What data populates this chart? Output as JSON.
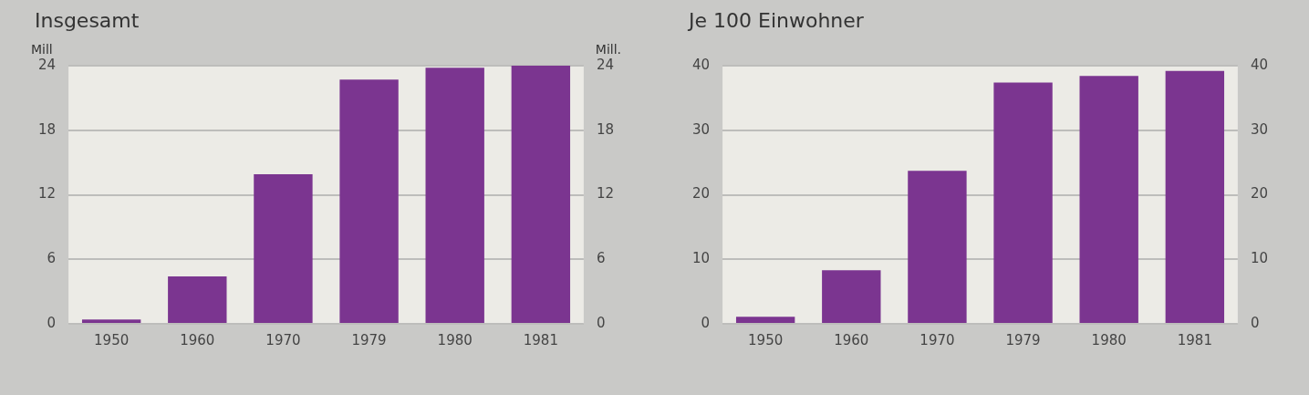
{
  "chart_data": [
    {
      "type": "bar",
      "title": "Insgesamt",
      "ylabel": "Mill",
      "y2label": "Mill.",
      "categories": [
        "1950",
        "1960",
        "1970",
        "1979",
        "1980",
        "1981"
      ],
      "series": [
        {
          "color": "#7b3590",
          "values": [
            0.4,
            4.4,
            13.9,
            22.7,
            23.8,
            24.0
          ]
        }
      ],
      "ylim": [
        0,
        24
      ],
      "yticks": [
        0,
        6,
        12,
        18,
        24
      ],
      "y2lim": [
        0,
        24
      ],
      "y2ticks": [
        0,
        6,
        12,
        18,
        24
      ],
      "grid": "y",
      "legend": false
    },
    {
      "type": "bar",
      "title": "Je 100 Einwohner",
      "categories": [
        "1950",
        "1960",
        "1970",
        "1979",
        "1980",
        "1981"
      ],
      "series": [
        {
          "color": "#7b3590",
          "values": [
            1.1,
            8.3,
            23.7,
            37.4,
            38.4,
            39.2
          ]
        }
      ],
      "ylim": [
        0,
        40
      ],
      "yticks": [
        0,
        10,
        20,
        30,
        40
      ],
      "y2lim": [
        0,
        40
      ],
      "y2ticks": [
        0,
        10,
        20,
        30,
        40
      ],
      "grid": "y",
      "legend": false
    }
  ]
}
